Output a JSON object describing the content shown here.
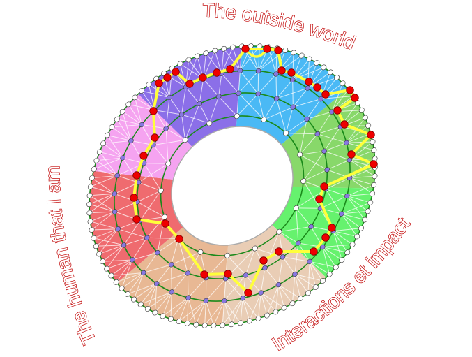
{
  "labels": {
    "top": "The outside world",
    "left": "The human that I am",
    "bottom_right": "Interactions et impact"
  },
  "colors": {
    "sectors": [
      "#4ab9f5",
      "#88d86a",
      "#66f26e",
      "#e9cdb5",
      "#e8b894",
      "#ef6b6f",
      "#f5a3f0",
      "#8b6fe8"
    ],
    "ring_line": "#1a8a1a",
    "path": "#ffff3a",
    "path_node": "#ee0000",
    "inner_node": "#8878e0",
    "edge_node": "#ffffff",
    "label_outline": "#c00000"
  }
}
